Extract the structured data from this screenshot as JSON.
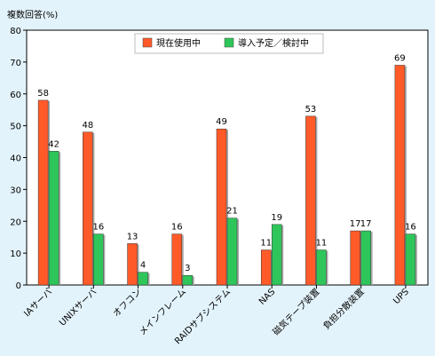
{
  "chart_data": {
    "type": "bar",
    "title": "",
    "ylabel": "複数回答(%)",
    "ylim": [
      0,
      80
    ],
    "yticks": [
      0,
      10,
      20,
      30,
      40,
      50,
      60,
      70,
      80
    ],
    "categories": [
      "IAサーバ",
      "UNIXサーバ",
      "オフコン",
      "メインフレーム",
      "RAIDサブシステム",
      "NAS",
      "磁気テープ装置",
      "負担分散装置",
      "UPS"
    ],
    "series": [
      {
        "name": "現在使用中",
        "color": "#ff5a28",
        "values": [
          58,
          48,
          13,
          16,
          49,
          11,
          53,
          17,
          69
        ]
      },
      {
        "name": "導入予定／検討中",
        "color": "#2ec65a",
        "values": [
          42,
          16,
          4,
          3,
          21,
          19,
          11,
          17,
          16
        ]
      }
    ],
    "legend_position": "top-center",
    "grid": false
  },
  "colors": {
    "background": "#e3f3fb",
    "plot_background": "#ffffff"
  }
}
